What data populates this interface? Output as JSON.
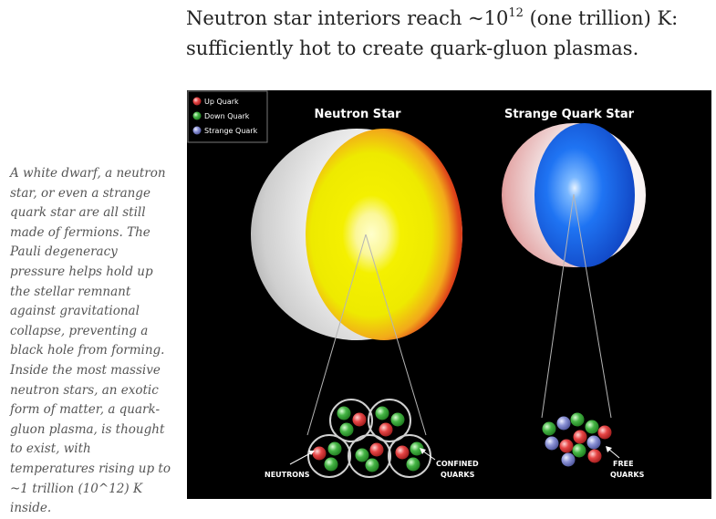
{
  "heading": {
    "line1_prefix": "Neutron star interiors reach ~10",
    "exponent": "12",
    "line1_suffix": " (one trillion) K:",
    "line2": "sufficiently hot to create quark-gluon plasmas."
  },
  "caption": "A white dwarf, a neutron star, or even a strange quark star are all still made of fermions. The Pauli degeneracy pressure helps hold up the stellar remnant against gravitational collapse, preventing a black hole from forming. Inside the most massive neutron stars, an exotic form of matter, a quark-gluon plasma, is thought to exist, with temperatures rising up to ~1 trillion (10^12) K inside.",
  "figure": {
    "legend": {
      "up": "Up Quark",
      "down": "Down Quark",
      "strange": "Strange Quark"
    },
    "titles": {
      "neutron_star": "Neutron Star",
      "strange_star": "Strange Quark Star"
    },
    "labels": {
      "neutrons": "NEUTRONS",
      "confined_1": "CONFINED",
      "confined_2": "QUARKS",
      "free_1": "FREE",
      "free_2": "QUARKS"
    },
    "colors": {
      "up_quark": "#e23a3a",
      "down_quark": "#3fae3f",
      "strange_quark": "#7f86c9",
      "neutron_core": "#f2ee00",
      "neutron_crust": "#d61e12",
      "strange_core": "#1f6ff0"
    }
  }
}
